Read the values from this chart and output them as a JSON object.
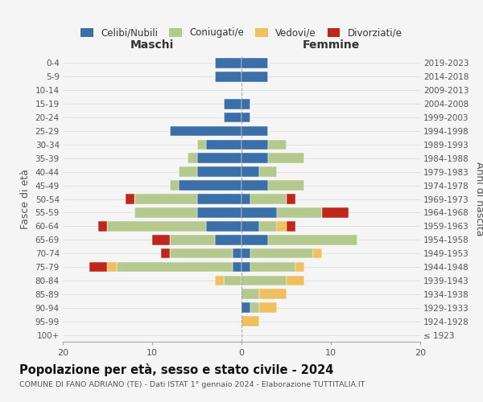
{
  "age_groups": [
    "100+",
    "95-99",
    "90-94",
    "85-89",
    "80-84",
    "75-79",
    "70-74",
    "65-69",
    "60-64",
    "55-59",
    "50-54",
    "45-49",
    "40-44",
    "35-39",
    "30-34",
    "25-29",
    "20-24",
    "15-19",
    "10-14",
    "5-9",
    "0-4"
  ],
  "birth_years": [
    "≤ 1923",
    "1924-1928",
    "1929-1933",
    "1934-1938",
    "1939-1943",
    "1944-1948",
    "1949-1953",
    "1954-1958",
    "1959-1963",
    "1964-1968",
    "1969-1973",
    "1974-1978",
    "1979-1983",
    "1984-1988",
    "1989-1993",
    "1994-1998",
    "1999-2003",
    "2004-2008",
    "2009-2013",
    "2014-2018",
    "2019-2023"
  ],
  "colors": {
    "celibi": "#3a6fa8",
    "coniugati": "#b5c98e",
    "vedovi": "#f0c060",
    "divorziati": "#c0271c"
  },
  "maschi": {
    "celibi": [
      0,
      0,
      0,
      0,
      0,
      1,
      1,
      3,
      4,
      5,
      5,
      7,
      5,
      5,
      4,
      8,
      2,
      2,
      0,
      3,
      3
    ],
    "coniugati": [
      0,
      0,
      0,
      0,
      2,
      13,
      7,
      5,
      11,
      7,
      7,
      1,
      2,
      1,
      1,
      0,
      0,
      0,
      0,
      0,
      0
    ],
    "vedovi": [
      0,
      0,
      0,
      0,
      1,
      1,
      0,
      0,
      0,
      0,
      0,
      0,
      0,
      0,
      0,
      0,
      0,
      0,
      0,
      0,
      0
    ],
    "divorziati": [
      0,
      0,
      0,
      0,
      0,
      2,
      1,
      2,
      1,
      0,
      1,
      0,
      0,
      0,
      0,
      0,
      0,
      0,
      0,
      0,
      0
    ]
  },
  "femmine": {
    "celibi": [
      0,
      0,
      1,
      0,
      0,
      1,
      1,
      3,
      2,
      4,
      1,
      3,
      2,
      3,
      3,
      3,
      1,
      1,
      0,
      3,
      3
    ],
    "coniugati": [
      0,
      0,
      1,
      2,
      5,
      5,
      7,
      10,
      2,
      5,
      4,
      4,
      2,
      4,
      2,
      0,
      0,
      0,
      0,
      0,
      0
    ],
    "vedovi": [
      0,
      2,
      2,
      3,
      2,
      1,
      1,
      0,
      1,
      0,
      0,
      0,
      0,
      0,
      0,
      0,
      0,
      0,
      0,
      0,
      0
    ],
    "divorziati": [
      0,
      0,
      0,
      0,
      0,
      0,
      0,
      0,
      1,
      3,
      1,
      0,
      0,
      0,
      0,
      0,
      0,
      0,
      0,
      0,
      0
    ]
  },
  "title": "Popolazione per età, sesso e stato civile - 2024",
  "subtitle": "COMUNE DI FANO ADRIANO (TE) - Dati ISTAT 1° gennaio 2024 - Elaborazione TUTTITALIA.IT",
  "xlabel_maschi": "Maschi",
  "xlabel_femmine": "Femmine",
  "ylabel_left": "Fasce di età",
  "ylabel_right": "Anni di nascita",
  "xlim": 20,
  "background_color": "#f5f5f5",
  "grid_color": "#dddddd"
}
